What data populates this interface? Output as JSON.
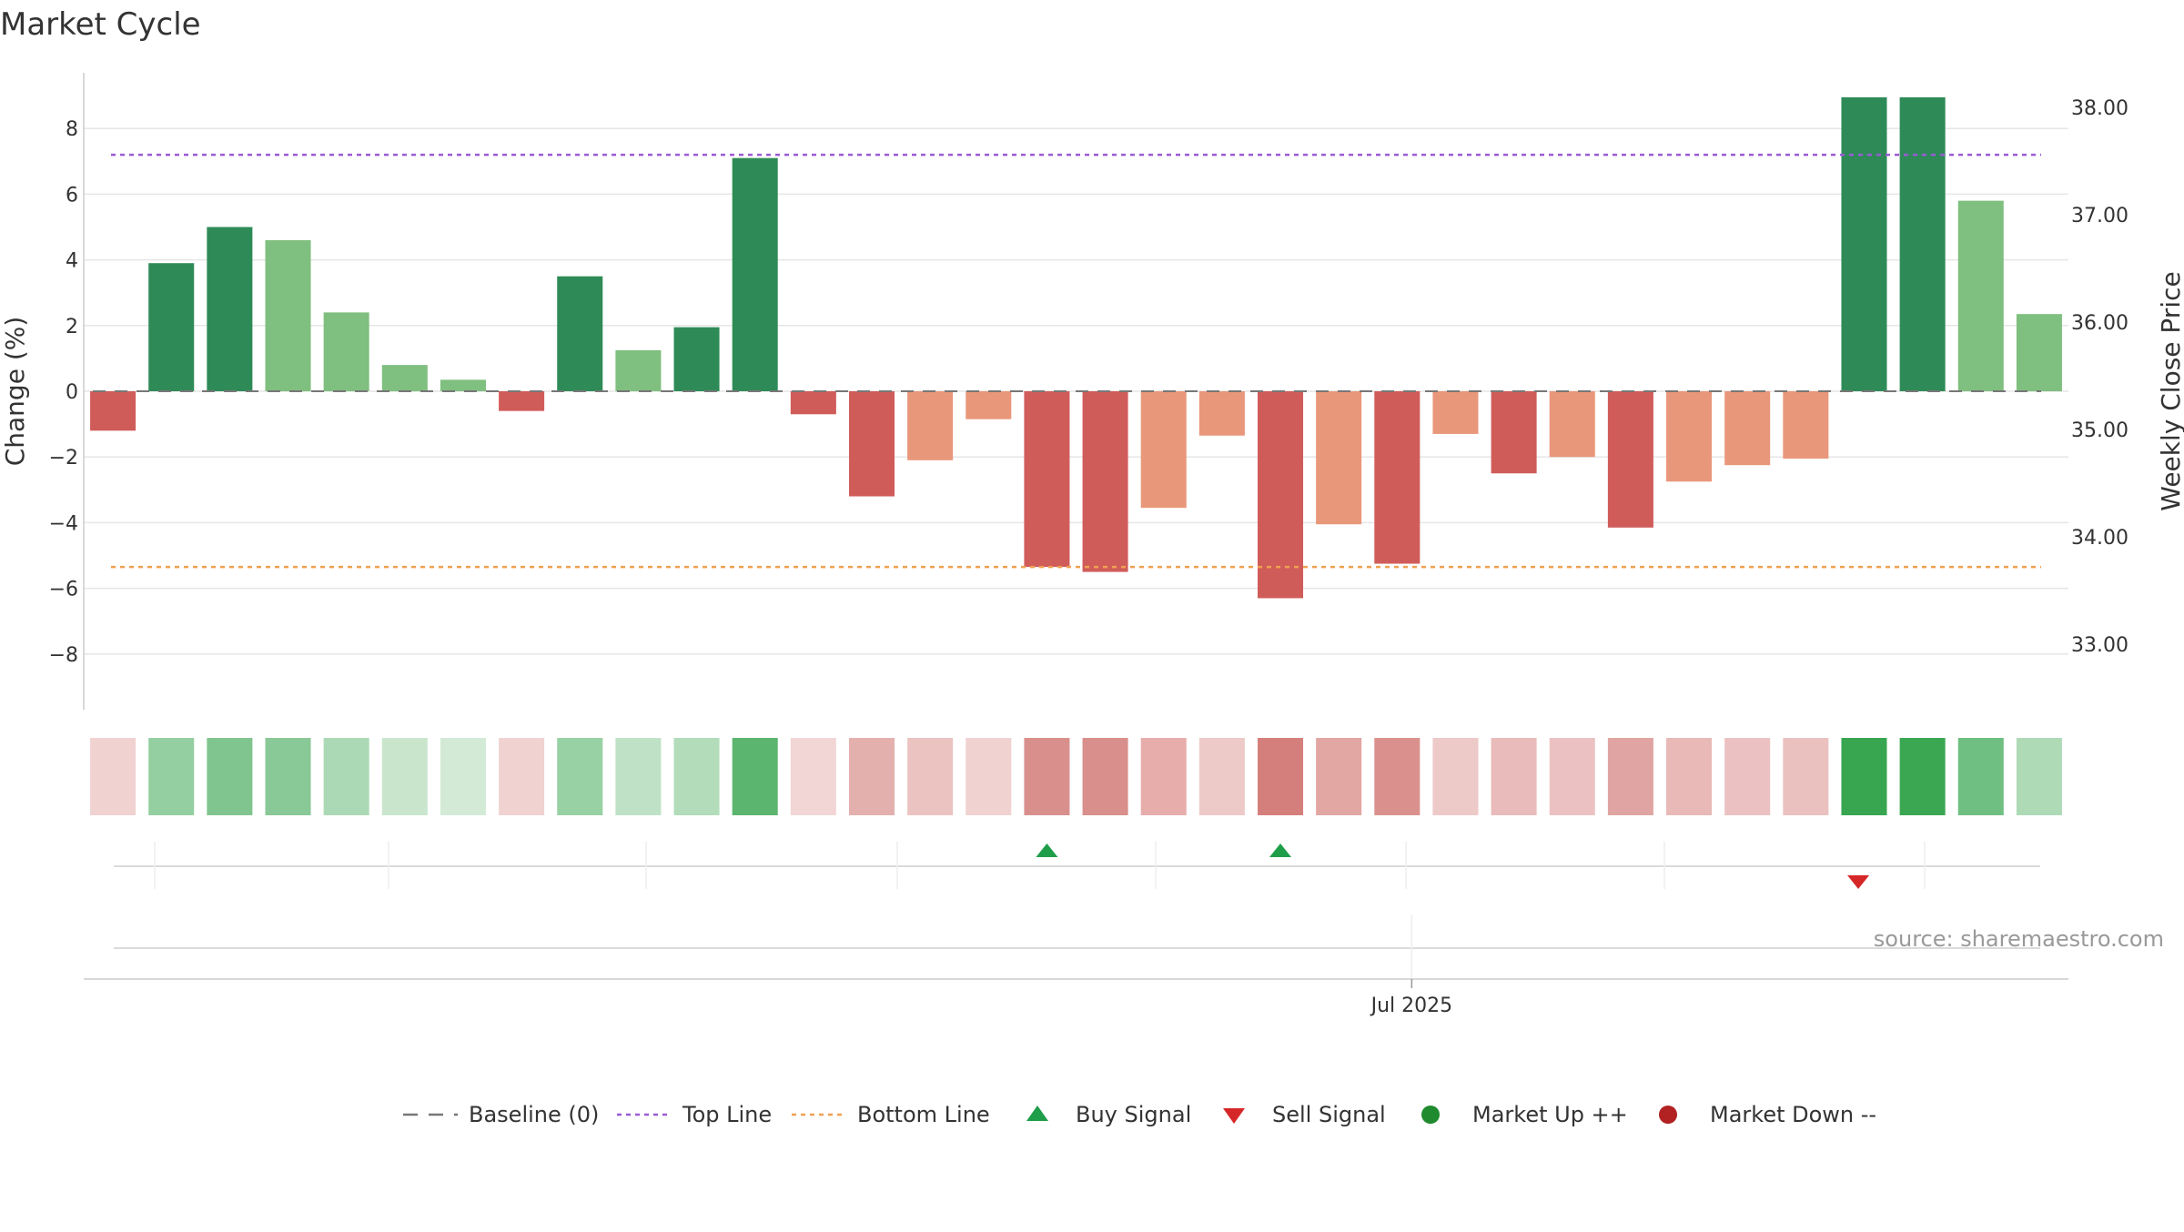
{
  "chart_data": {
    "type": "bar",
    "title": "Market Cycle",
    "ylabel": "Change (%)",
    "y2label": "Weekly Close Price",
    "ylim": [
      -9.8,
      9.8
    ],
    "y_ticks": [
      8,
      6,
      4,
      2,
      0,
      -2,
      -4,
      -6,
      -8
    ],
    "y_tick_labels": [
      "8",
      "6",
      "4",
      "2",
      "0",
      "−2",
      "−4",
      "−6",
      "−8"
    ],
    "y2_ticks": [
      38,
      37,
      36,
      35,
      34,
      33
    ],
    "y2_tick_labels": [
      "38.00",
      "37.00",
      "36.00",
      "35.00",
      "34.00",
      "33.00"
    ],
    "x_label_text": "Jul 2025",
    "x_label_index": 22.75,
    "values": [
      -1.2,
      3.9,
      5.0,
      4.6,
      2.4,
      0.8,
      0.35,
      -0.6,
      3.5,
      1.25,
      1.95,
      7.1,
      -0.7,
      -3.2,
      -2.1,
      -0.85,
      -5.35,
      -5.5,
      -3.55,
      -1.35,
      -6.3,
      -4.05,
      -5.25,
      -1.3,
      -2.5,
      -2.0,
      -4.15,
      -2.75,
      -2.25,
      -2.05,
      8.95,
      8.95,
      5.8,
      2.35
    ],
    "bar_colors": [
      "#d05c5a",
      "#2e8b57",
      "#2e8b57",
      "#7fbf7f",
      "#7fbf7f",
      "#7fbf7f",
      "#7fbf7f",
      "#d05c5a",
      "#2e8b57",
      "#7fbf7f",
      "#2e8b57",
      "#2e8b57",
      "#d05c5a",
      "#d05c5a",
      "#e9977a",
      "#e9977a",
      "#d05c5a",
      "#d05c5a",
      "#e9977a",
      "#e9977a",
      "#d05c5a",
      "#e9977a",
      "#d05c5a",
      "#e9977a",
      "#d05c5a",
      "#e9977a",
      "#d05c5a",
      "#e9977a",
      "#e9977a",
      "#e9977a",
      "#2e8b57",
      "#2e8b57",
      "#7fbf7f",
      "#7fbf7f"
    ],
    "heat_colors": [
      "#f0d2d1",
      "#93cfa0",
      "#80c58f",
      "#89c997",
      "#acd9b5",
      "#c9e6cd",
      "#d3ebd6",
      "#f0d2d1",
      "#98d1a4",
      "#bfe2c6",
      "#b2dcba",
      "#5bb56e",
      "#f2d6d5",
      "#e4b0ae",
      "#ebc3c1",
      "#f0d2d1",
      "#d9908d",
      "#d98f8b",
      "#e6adab",
      "#edc9c8",
      "#d57f7c",
      "#e2a6a3",
      "#da918e",
      "#edc9c8",
      "#e9bbba",
      "#ebc2c1",
      "#e0a5a2",
      "#e8b9b7",
      "#ebc2c1",
      "#eac1bf",
      "#38a550",
      "#3ba752",
      "#70bf82",
      "#aedab6"
    ],
    "top_line": 7.2,
    "bottom_line": -5.35,
    "baseline": 0,
    "buy_signals": [
      16.5,
      20.5
    ],
    "sell_signals": [
      30.4
    ],
    "colors": {
      "up_strong": "#2e8b57",
      "up_weak": "#7fbf7f",
      "down_strong": "#d05c5a",
      "down_weak": "#e9977a",
      "top_line": "#9b59d6",
      "bottom_line": "#f0a050",
      "buy": "#1f9e4a",
      "sell": "#d62728",
      "market_up": "#1f8b2e",
      "market_down": "#b22222"
    },
    "legend_placement": "bottom-center",
    "legend": [
      {
        "label": "Baseline (0)",
        "marker": "dashed-line",
        "color": "#777777"
      },
      {
        "label": "Top Line",
        "marker": "dotted-line",
        "color": "#9b59d6"
      },
      {
        "label": "Bottom Line",
        "marker": "dotted-line",
        "color": "#f0a050"
      },
      {
        "label": "Buy Signal",
        "marker": "triangle-up",
        "color": "#1f9e4a"
      },
      {
        "label": "Sell Signal",
        "marker": "triangle-down",
        "color": "#d62728"
      },
      {
        "label": "Market Up ++",
        "marker": "circle",
        "color": "#1f8b2e"
      },
      {
        "label": "Market Down --",
        "marker": "circle",
        "color": "#b22222"
      }
    ],
    "source": "source: sharemaestro.com"
  }
}
